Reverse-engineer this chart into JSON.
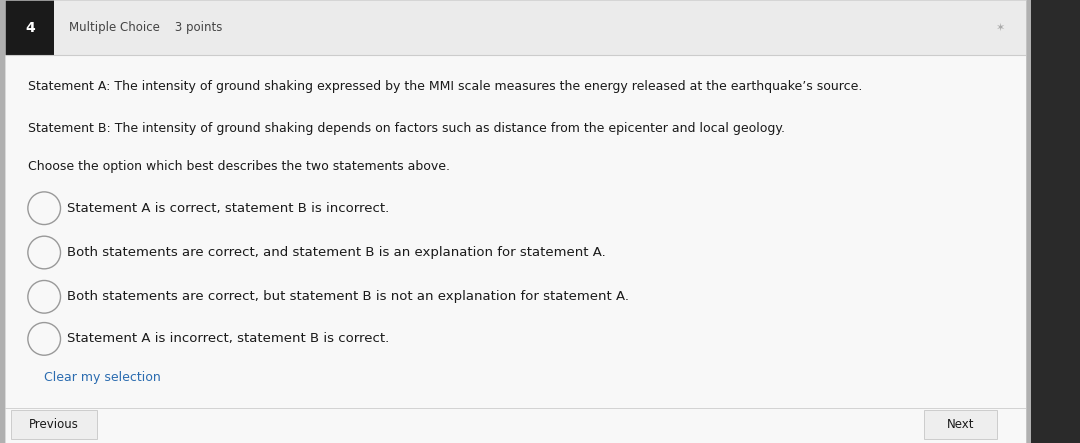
{
  "question_number": "4",
  "question_type": "Multiple Choice",
  "question_points": "3 points",
  "statement_a": "Statement A: The intensity of ground shaking expressed by the MMI scale measures the energy released at the earthquake’s source.",
  "statement_b": "Statement B: The intensity of ground shaking depends on factors such as distance from the epicenter and local geology.",
  "instruction": "Choose the option which best describes the two statements above.",
  "options": [
    "Statement A is correct, statement B is incorrect.",
    "Both statements are correct, and statement B is an explanation for statement A.",
    "Both statements are correct, but statement B is not an explanation for statement A.",
    "Statement A is incorrect, statement B is correct."
  ],
  "clear_text": "Clear my selection",
  "prev_text": "Previous",
  "next_text": "Next",
  "outer_bg": "#b0b0b0",
  "card_bg": "#f0f0f0",
  "white_area": "#f8f8f8",
  "header_bg": "#f0f0f0",
  "question_num_bg": "#1a1a1a",
  "question_num_fg": "#ffffff",
  "text_color": "#1a1a1a",
  "header_text_color": "#444444",
  "link_color": "#2b6cb0",
  "radio_edge_color": "#999999",
  "button_bg": "#eeeeee",
  "button_border": "#cccccc",
  "sidebar_color": "#2a2a2a",
  "card_border": "#cccccc",
  "separator_color": "#cccccc",
  "bookmark_color": "#aaaaaa",
  "font_size_header": 8.5,
  "font_size_body": 9.0,
  "font_size_option": 9.5,
  "font_size_qnum": 10,
  "font_size_clear": 9.0,
  "font_size_button": 8.5
}
